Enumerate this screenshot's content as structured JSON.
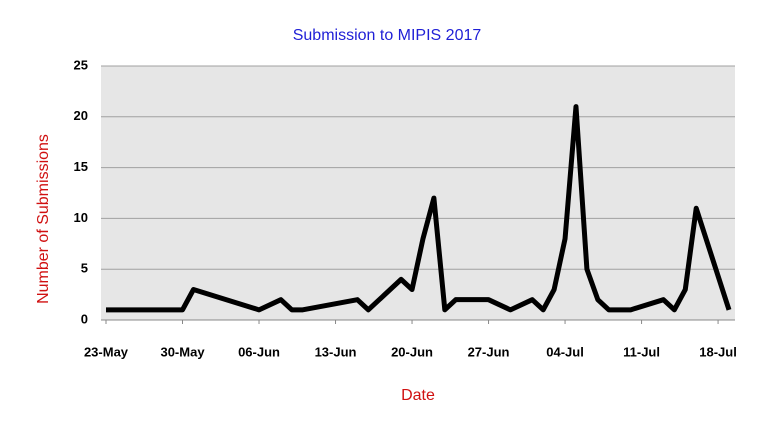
{
  "chart_data": {
    "type": "line",
    "title": "Submission to MIPIS  2017",
    "x_label": "Date",
    "y_label": "Number of Submissions",
    "x": [
      "23-May",
      "30-May",
      "31-May",
      "06-Jun",
      "08-Jun",
      "09-Jun",
      "10-Jun",
      "15-Jun",
      "16-Jun",
      "19-Jun",
      "20-Jun",
      "21-Jun",
      "22-Jun",
      "23-Jun",
      "24-Jun",
      "27-Jun",
      "29-Jun",
      "01-Jul",
      "02-Jul",
      "03-Jul",
      "04-Jul",
      "05-Jul",
      "06-Jul",
      "07-Jul",
      "08-Jul",
      "10-Jul",
      "13-Jul",
      "14-Jul",
      "15-Jul",
      "16-Jul",
      "19-Jul"
    ],
    "series": [
      {
        "color": "#000000",
        "values": [
          1,
          1,
          3,
          1,
          2,
          1,
          1,
          2,
          1,
          4,
          3,
          8,
          12,
          1,
          2,
          2,
          1,
          2,
          1,
          3,
          8,
          21,
          5,
          2,
          1,
          1,
          2,
          1,
          3,
          11,
          1
        ]
      }
    ],
    "xlim": [
      "23-May",
      "19-Jul"
    ],
    "xticks": [
      "23-May",
      "30-May",
      "06-Jun",
      "13-Jun",
      "20-Jun",
      "27-Jun",
      "04-Jul",
      "11-Jul",
      "18-Jul"
    ],
    "ylim": [
      0,
      25
    ],
    "yticks": [
      0,
      5,
      10,
      15,
      20,
      25
    ],
    "grid": true
  }
}
